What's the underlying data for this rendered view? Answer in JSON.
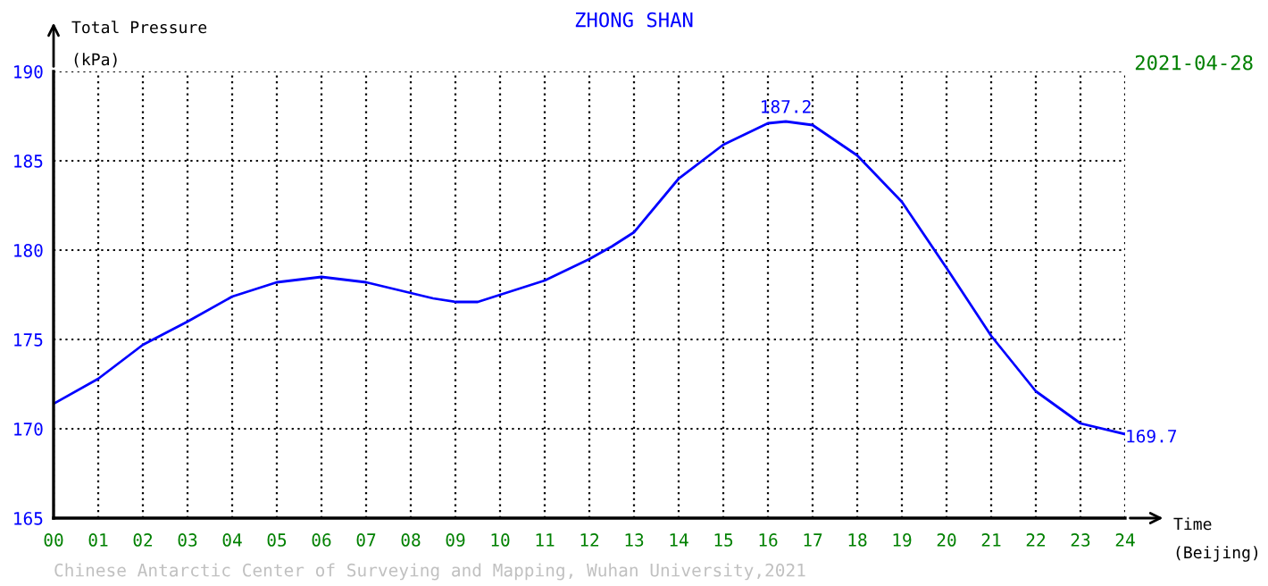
{
  "chart_data": {
    "type": "line",
    "title": "ZHONG SHAN",
    "subtitle": "2021-04-28",
    "ylabel": "Total Pressure\n(kPa)",
    "xlabel": "Time\n(Beijing)",
    "x": [
      0,
      1,
      2,
      3,
      4,
      5,
      6,
      7,
      8,
      8.5,
      9,
      9.5,
      10,
      11,
      12,
      12.5,
      13,
      14,
      15,
      16,
      16.4,
      17,
      18,
      19,
      20,
      21,
      22,
      23,
      24
    ],
    "series": [
      {
        "color": "#0000ff",
        "values": [
          171.4,
          172.8,
          174.7,
          176.0,
          177.4,
          178.2,
          178.5,
          178.2,
          177.6,
          177.3,
          177.1,
          177.1,
          177.5,
          178.3,
          179.5,
          180.2,
          181.0,
          184.0,
          185.9,
          187.1,
          187.2,
          187.0,
          185.3,
          182.7,
          179.0,
          175.2,
          172.1,
          170.3,
          169.7
        ]
      }
    ],
    "annotations": [
      {
        "text": "187.2",
        "x": 16.4,
        "y": 187.2
      },
      {
        "text": "169.7",
        "x": 24,
        "y": 169.7
      },
      "Chinese Antarctic Center of Surveying and Mapping, Wuhan University,2021"
    ],
    "xlim": [
      0,
      24
    ],
    "ylim": [
      165,
      190
    ],
    "xticks": [
      {
        "value": 0,
        "label": "00"
      },
      {
        "value": 1,
        "label": "01"
      },
      {
        "value": 2,
        "label": "02"
      },
      {
        "value": 3,
        "label": "03"
      },
      {
        "value": 4,
        "label": "04"
      },
      {
        "value": 5,
        "label": "05"
      },
      {
        "value": 6,
        "label": "06"
      },
      {
        "value": 7,
        "label": "07"
      },
      {
        "value": 8,
        "label": "08"
      },
      {
        "value": 9,
        "label": "09"
      },
      10,
      11,
      12,
      13,
      14,
      15,
      16,
      17,
      18,
      19,
      20,
      21,
      22,
      23,
      24
    ],
    "yticks": [
      165,
      170,
      175,
      180,
      185,
      190
    ],
    "grid": true,
    "marker": "none",
    "line_style": "solid"
  }
}
